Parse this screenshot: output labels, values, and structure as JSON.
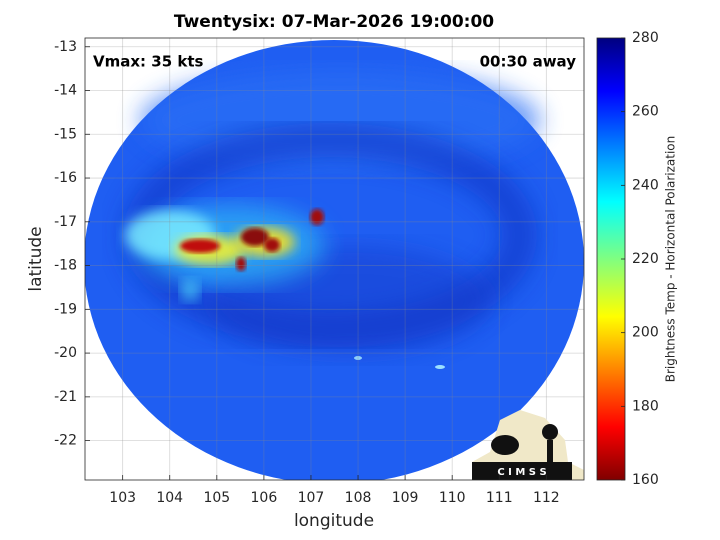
{
  "chart_data": {
    "type": "image",
    "title": "Twentysix: 07-Mar-2026 19:00:00",
    "xlabel": "longitude",
    "ylabel": "latitude",
    "annotations": [
      "Vmax: 35 kts",
      "00:30 away"
    ],
    "xlim": [
      102.2,
      112.8
    ],
    "xticks": [
      103,
      104,
      105,
      106,
      107,
      108,
      109,
      110,
      111,
      112
    ],
    "ylim": [
      -22.9,
      -12.8
    ],
    "yticks": [
      -13,
      -14,
      -15,
      -16,
      -17,
      -18,
      -19,
      -20,
      -21,
      -22
    ],
    "grid": true,
    "colorbar": {
      "label": "Brightness Temp - Horizontal Polarization",
      "lim": [
        160,
        280
      ],
      "ticks": [
        160,
        180,
        200,
        220,
        240,
        260,
        280
      ],
      "colormap": "jet"
    },
    "logo": "C I M S S"
  }
}
